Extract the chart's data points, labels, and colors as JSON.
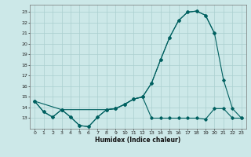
{
  "xlabel": "Humidex (Indice chaleur)",
  "bg_color": "#cce8e8",
  "grid_color": "#aacfcf",
  "line_color": "#006060",
  "xlim": [
    -0.5,
    23.5
  ],
  "ylim": [
    12,
    23.7
  ],
  "yticks": [
    13,
    14,
    15,
    16,
    17,
    18,
    19,
    20,
    21,
    22,
    23
  ],
  "xticks": [
    0,
    1,
    2,
    3,
    4,
    5,
    6,
    7,
    8,
    9,
    10,
    11,
    12,
    13,
    14,
    15,
    16,
    17,
    18,
    19,
    20,
    21,
    22,
    23
  ],
  "line1_x": [
    0,
    1,
    2,
    3,
    4,
    5,
    6,
    7,
    8,
    9,
    10,
    11,
    12,
    13,
    14,
    15,
    16,
    17,
    18,
    19,
    20,
    21,
    22,
    23
  ],
  "line1_y": [
    14.6,
    13.6,
    13.1,
    13.8,
    13.1,
    12.3,
    12.2,
    13.1,
    13.8,
    13.9,
    14.3,
    14.8,
    15.0,
    13.0,
    13.0,
    13.0,
    13.0,
    13.0,
    13.0,
    12.9,
    13.9,
    13.9,
    13.0,
    13.0
  ],
  "line2_x": [
    0,
    1,
    2,
    3,
    4,
    5,
    6,
    7,
    8,
    9,
    10,
    11,
    12,
    13,
    14,
    15,
    16,
    17,
    18,
    19,
    20,
    21,
    22,
    23
  ],
  "line2_y": [
    14.6,
    13.6,
    13.1,
    13.8,
    13.1,
    12.3,
    12.2,
    13.1,
    13.8,
    13.9,
    14.3,
    14.8,
    15.0,
    16.3,
    18.5,
    20.6,
    22.2,
    23.0,
    23.1,
    22.7,
    21.0,
    16.6,
    13.9,
    13.0
  ],
  "line3_x": [
    0,
    3,
    8,
    9,
    10,
    11,
    12,
    13,
    14,
    15,
    16,
    17,
    18,
    19,
    20
  ],
  "line3_y": [
    14.6,
    13.8,
    13.8,
    13.9,
    14.3,
    14.8,
    15.0,
    16.3,
    18.5,
    20.6,
    22.2,
    23.0,
    23.1,
    22.7,
    21.0
  ]
}
